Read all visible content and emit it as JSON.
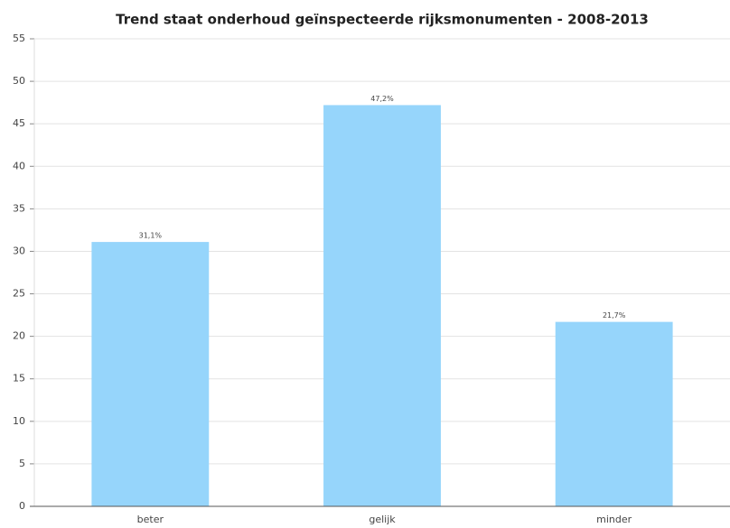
{
  "chart_data": {
    "type": "bar",
    "title": "Trend staat onderhoud geïnspecteerde rijksmonumenten - 2008-2013",
    "categories": [
      "beter",
      "gelijk",
      "minder"
    ],
    "values": [
      31.1,
      47.2,
      21.7
    ],
    "value_labels": [
      "31,1%",
      "47,2%",
      "21,7%"
    ],
    "color": "#96d5fb",
    "ylim": [
      0,
      55
    ],
    "yticks": [
      0,
      5,
      10,
      15,
      20,
      25,
      30,
      35,
      40,
      45,
      50,
      55
    ],
    "grid": true
  }
}
